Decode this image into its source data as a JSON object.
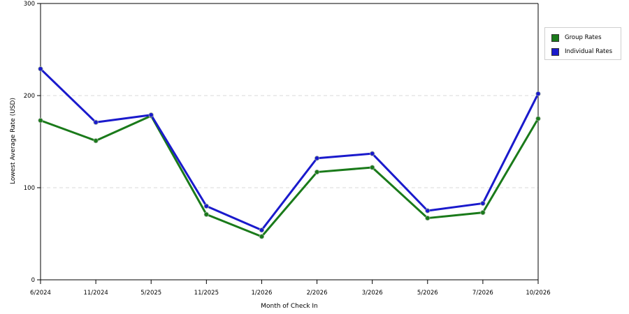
{
  "chart_data": {
    "type": "line",
    "title": "",
    "xlabel": "Month of Check In",
    "ylabel": "Lowest Average Rate (USD)",
    "ylim": [
      0,
      300
    ],
    "yticks": [
      "0",
      "100",
      "200",
      "300"
    ],
    "grid": "horizontal dashed",
    "legend_position": "right",
    "categories": [
      "6/2024",
      "11/2024",
      "5/2025",
      "11/2025",
      "1/2026",
      "2/2026",
      "3/2026",
      "5/2026",
      "7/2026",
      "10/2026"
    ],
    "series": [
      {
        "name": "Group Rates",
        "color": "#1a7a1a",
        "values": [
          173,
          151,
          178,
          71,
          47,
          117,
          122,
          67,
          73,
          175
        ]
      },
      {
        "name": "Individual Rates",
        "color": "#1a1acc",
        "values": [
          229,
          171,
          179,
          80,
          54,
          132,
          137,
          75,
          83,
          202
        ]
      }
    ]
  }
}
